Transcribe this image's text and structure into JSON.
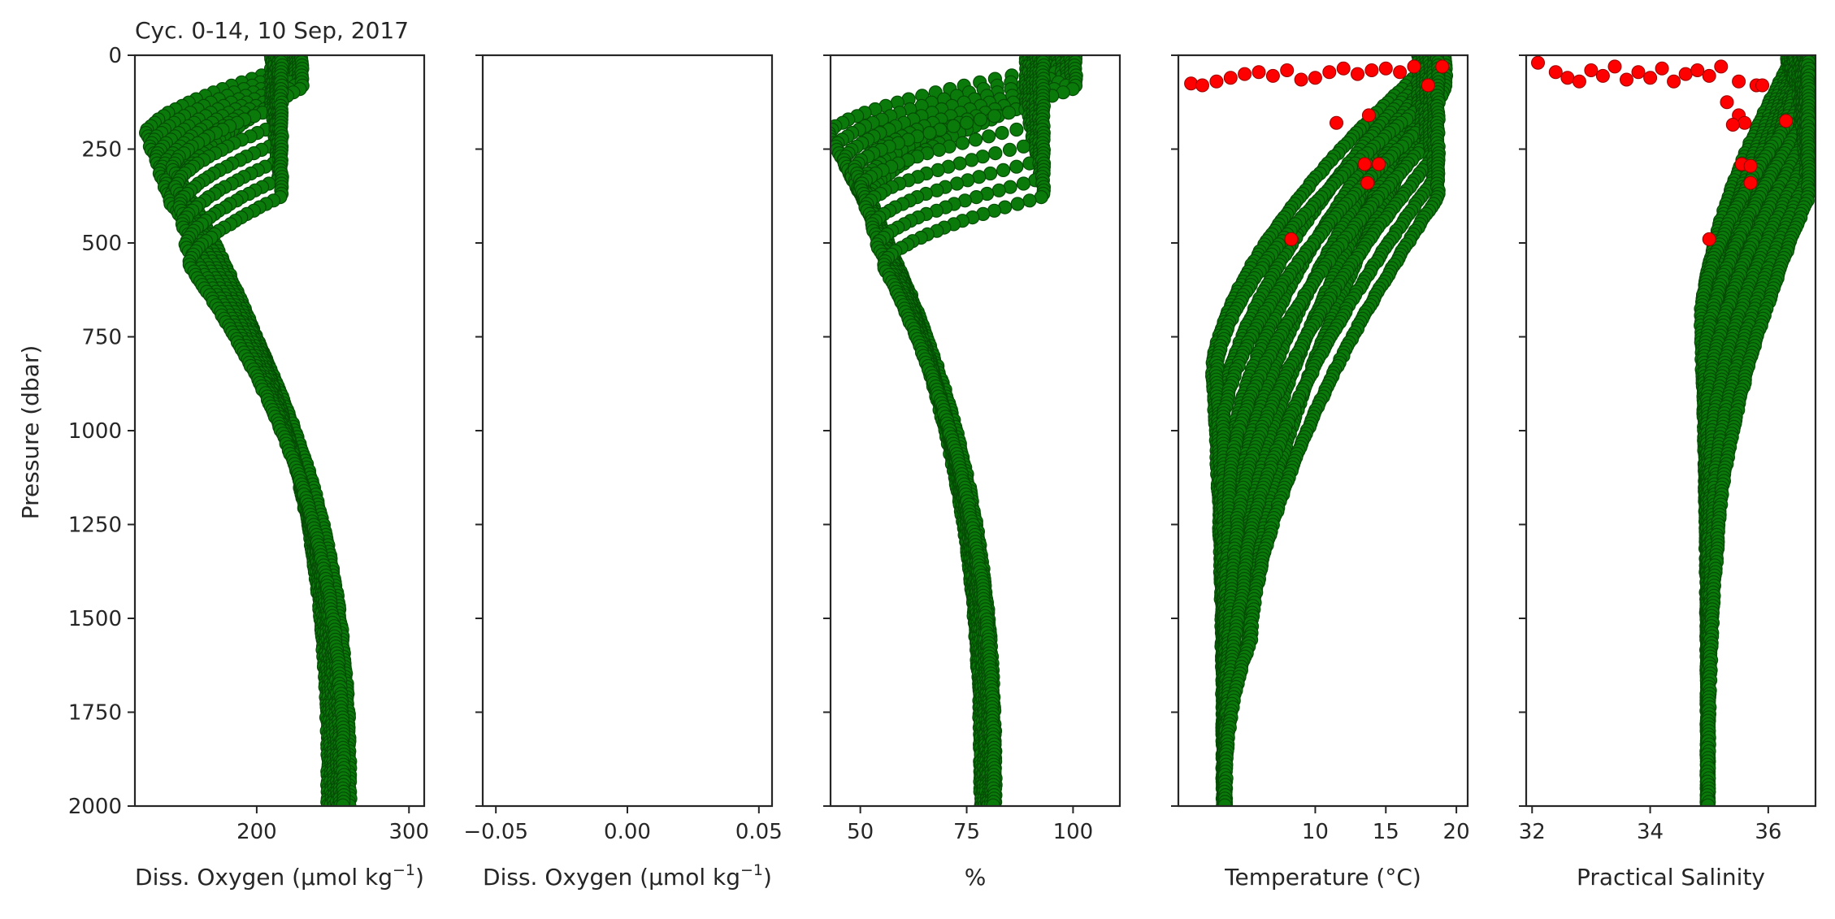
{
  "chart_data": {
    "type": "scatter",
    "title": "Cyc. 0-14, 10 Sep, 2017",
    "ylabel": "Pressure (dbar)",
    "ylim": [
      2000,
      0
    ],
    "y_ticks": [
      "0",
      "250",
      "500",
      "750",
      "1000",
      "1250",
      "1500",
      "1750",
      "2000"
    ],
    "colors": {
      "good": "#0a7a0a",
      "good_edge": "#054d05",
      "flagged": "#ff0000"
    },
    "cycles": 15,
    "panels": [
      {
        "id": "doxy",
        "xlabel": "Diss. Oxygen (μmol kg",
        "xlabel_sup": "−1",
        "xlabel_tail": ")",
        "xlim": [
          120,
          310
        ],
        "x_ticks": [
          "200",
          "300"
        ],
        "x_tick_values": [
          200,
          300
        ],
        "profile_types": [
          {
            "name": "stratified",
            "surface": 225,
            "mixed_depth": 60,
            "min_value": 135,
            "min_depth": 300,
            "deep": 255,
            "variants": 6
          },
          {
            "name": "mode_water",
            "surface": 213,
            "mixed_depth": 260,
            "min_value": 150,
            "min_depth": 430,
            "deep": 252,
            "variants": 6
          }
        ]
      },
      {
        "id": "doxy_raw",
        "xlabel": "Diss. Oxygen (μmol kg",
        "xlabel_sup": "−1",
        "xlabel_tail": ")",
        "xlim": [
          -0.055,
          0.055
        ],
        "x_ticks": [
          "−0.05",
          "0.00",
          "0.05"
        ],
        "x_tick_values": [
          -0.05,
          0.0,
          0.05
        ],
        "profile_types": []
      },
      {
        "id": "o2sat",
        "xlabel": "%",
        "xlim": [
          43,
          111
        ],
        "x_ticks": [
          "50",
          "75",
          "100"
        ],
        "x_tick_values": [
          50,
          75,
          100
        ],
        "profile_types": [
          {
            "name": "stratified",
            "surface": 98,
            "mixed_depth": 60,
            "min_value": 47,
            "min_depth": 300,
            "deep": 80,
            "variants": 6
          },
          {
            "name": "mode_water",
            "surface": 91,
            "mixed_depth": 260,
            "min_value": 52,
            "min_depth": 430,
            "deep": 80,
            "variants": 6
          }
        ]
      },
      {
        "id": "temp",
        "xlabel": "Temperature (°C)",
        "xlim": [
          0.3,
          20.8
        ],
        "x_ticks": [
          "10",
          "15",
          "20"
        ],
        "x_tick_values": [
          10,
          15,
          20
        ],
        "profile_types": [
          {
            "name": "stratified",
            "surface": 18.5,
            "mixed_depth": 60,
            "min_value": 4.0,
            "min_depth": 1200,
            "deep": 3.5,
            "variants": 6
          },
          {
            "name": "mode_water",
            "surface": 18.0,
            "mixed_depth": 260,
            "min_value": 4.2,
            "min_depth": 1200,
            "deep": 3.6,
            "variants": 6
          }
        ],
        "flagged": [
          [
            1.2,
            75
          ],
          [
            2,
            80
          ],
          [
            3,
            70
          ],
          [
            4,
            60
          ],
          [
            5,
            50
          ],
          [
            6,
            45
          ],
          [
            7,
            55
          ],
          [
            8,
            40
          ],
          [
            9,
            65
          ],
          [
            10,
            60
          ],
          [
            11,
            45
          ],
          [
            12,
            35
          ],
          [
            13,
            50
          ],
          [
            14,
            40
          ],
          [
            15,
            35
          ],
          [
            16,
            45
          ],
          [
            17,
            30
          ],
          [
            18,
            80
          ],
          [
            19,
            30
          ],
          [
            11.5,
            180
          ],
          [
            13.8,
            160
          ],
          [
            13.5,
            290
          ],
          [
            14.5,
            290
          ],
          [
            13.7,
            340
          ],
          [
            8.3,
            490
          ]
        ]
      },
      {
        "id": "psal",
        "xlabel": "Practical Salinity",
        "xlim": [
          31.9,
          36.8
        ],
        "x_ticks": [
          "32",
          "34",
          "36"
        ],
        "x_tick_values": [
          32,
          34,
          36
        ],
        "profile_types": [
          {
            "name": "stratified",
            "surface": 36.4,
            "mixed_depth": 60,
            "min_value": 35.0,
            "min_depth": 1000,
            "deep": 34.97,
            "variants": 6
          },
          {
            "name": "mode_water",
            "surface": 36.6,
            "mixed_depth": 260,
            "min_value": 35.0,
            "min_depth": 1000,
            "deep": 34.98,
            "variants": 6
          }
        ],
        "flagged": [
          [
            32.1,
            20
          ],
          [
            32.4,
            45
          ],
          [
            32.6,
            60
          ],
          [
            32.8,
            70
          ],
          [
            33.0,
            40
          ],
          [
            33.2,
            55
          ],
          [
            33.4,
            30
          ],
          [
            33.6,
            65
          ],
          [
            33.8,
            45
          ],
          [
            34.0,
            60
          ],
          [
            34.2,
            35
          ],
          [
            34.4,
            70
          ],
          [
            34.6,
            50
          ],
          [
            34.8,
            40
          ],
          [
            35.0,
            55
          ],
          [
            35.2,
            30
          ],
          [
            35.5,
            70
          ],
          [
            35.8,
            80
          ],
          [
            35.3,
            125
          ],
          [
            35.5,
            160
          ],
          [
            35.6,
            180
          ],
          [
            35.4,
            185
          ],
          [
            36.3,
            175
          ],
          [
            35.55,
            290
          ],
          [
            35.7,
            295
          ],
          [
            35.7,
            340
          ],
          [
            35.9,
            80
          ],
          [
            35.0,
            490
          ]
        ]
      }
    ]
  }
}
